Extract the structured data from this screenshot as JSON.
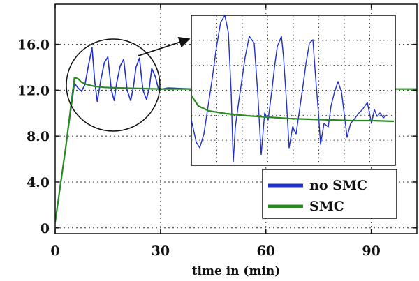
{
  "chart_data": {
    "type": "line",
    "xlabel": "time in (min)",
    "ylabel": "",
    "title": "",
    "xlim": [
      0,
      103
    ],
    "ylim": [
      -0.5,
      19.5
    ],
    "x_ticks": [
      0,
      30,
      60,
      90
    ],
    "x_tick_labels": [
      "0",
      "30",
      "60",
      "90"
    ],
    "y_ticks": [
      0,
      4,
      8,
      12,
      16
    ],
    "y_tick_labels": [
      "0",
      "4.0",
      "8.0",
      "12.0",
      "16.0"
    ],
    "grid": true,
    "legend_position": "bottom-right",
    "series": [
      {
        "name": "no SMC",
        "color": "#1f2fd0",
        "x": [
          0,
          3,
          5.5,
          6.5,
          7.5,
          8.5,
          9.5,
          10.5,
          11.3,
          12.0,
          13.0,
          14.0,
          15.0,
          16.0,
          16.8,
          17.5,
          18.5,
          19.5,
          20.5,
          21.5,
          22.3,
          23.0,
          24.0,
          25.0,
          26.0,
          26.8,
          27.5,
          28.5,
          29.5,
          30.5,
          32,
          40,
          60,
          80,
          103
        ],
        "y": [
          0.5,
          7.0,
          12.6,
          12.2,
          11.9,
          12.5,
          14.2,
          15.7,
          12.7,
          11.0,
          12.9,
          14.4,
          14.9,
          12.0,
          11.1,
          12.6,
          14.1,
          14.7,
          12.0,
          11.1,
          12.3,
          14.0,
          14.8,
          12.0,
          11.2,
          12.2,
          13.9,
          13.2,
          12.0,
          12.1,
          12.2,
          12.1,
          12.1,
          12.1,
          12.1
        ]
      },
      {
        "name": "SMC",
        "color": "#2a8a22",
        "x": [
          0,
          3,
          5.5,
          6.5,
          7.5,
          9,
          11,
          14,
          18,
          24,
          30,
          40,
          60,
          80,
          103
        ],
        "y": [
          0.5,
          7.0,
          13.1,
          13.0,
          12.7,
          12.5,
          12.35,
          12.25,
          12.2,
          12.15,
          12.1,
          12.1,
          12.1,
          12.1,
          12.1
        ]
      }
    ],
    "inset": {
      "series": [
        {
          "name": "no SMC",
          "color": "#1f2fd0",
          "points": [
            [
              0,
              150
            ],
            [
              7,
              182
            ],
            [
              12,
              190
            ],
            [
              18,
              170
            ],
            [
              24,
              130
            ],
            [
              30,
              90
            ],
            [
              36,
              45
            ],
            [
              42,
              10
            ],
            [
              48,
              0
            ],
            [
              53,
              25
            ],
            [
              57,
              110
            ],
            [
              60,
              210
            ],
            [
              63,
              160
            ],
            [
              67,
              130
            ],
            [
              72,
              95
            ],
            [
              77,
              60
            ],
            [
              83,
              30
            ],
            [
              90,
              40
            ],
            [
              95,
              110
            ],
            [
              100,
              200
            ],
            [
              105,
              140
            ],
            [
              110,
              150
            ],
            [
              115,
              110
            ],
            [
              119,
              75
            ],
            [
              123,
              45
            ],
            [
              129,
              30
            ],
            [
              132,
              60
            ],
            [
              136,
              120
            ],
            [
              140,
              190
            ],
            [
              145,
              160
            ],
            [
              150,
              170
            ],
            [
              155,
              135
            ],
            [
              160,
              100
            ],
            [
              164,
              70
            ],
            [
              169,
              40
            ],
            [
              174,
              35
            ],
            [
              178,
              90
            ],
            [
              182,
              140
            ],
            [
              185,
              185
            ],
            [
              190,
              155
            ],
            [
              196,
              160
            ],
            [
              200,
              130
            ],
            [
              205,
              110
            ],
            [
              210,
              95
            ],
            [
              215,
              110
            ],
            [
              220,
              150
            ],
            [
              223,
              175
            ],
            [
              228,
              155
            ],
            [
              234,
              148
            ],
            [
              240,
              140
            ],
            [
              245,
              135
            ],
            [
              252,
              125
            ],
            [
              258,
              155
            ],
            [
              262,
              135
            ],
            [
              266,
              145
            ],
            [
              270,
              140
            ],
            [
              275,
              147
            ],
            [
              280,
              143
            ]
          ]
        },
        {
          "name": "SMC",
          "color": "#2a8a22",
          "points": [
            [
              0,
              115
            ],
            [
              10,
              130
            ],
            [
              25,
              137
            ],
            [
              50,
              141
            ],
            [
              80,
              144
            ],
            [
              110,
              146
            ],
            [
              140,
              148
            ],
            [
              170,
              149
            ],
            [
              200,
              150
            ],
            [
              230,
              151
            ],
            [
              260,
              151
            ],
            [
              290,
              152
            ]
          ]
        }
      ]
    }
  }
}
